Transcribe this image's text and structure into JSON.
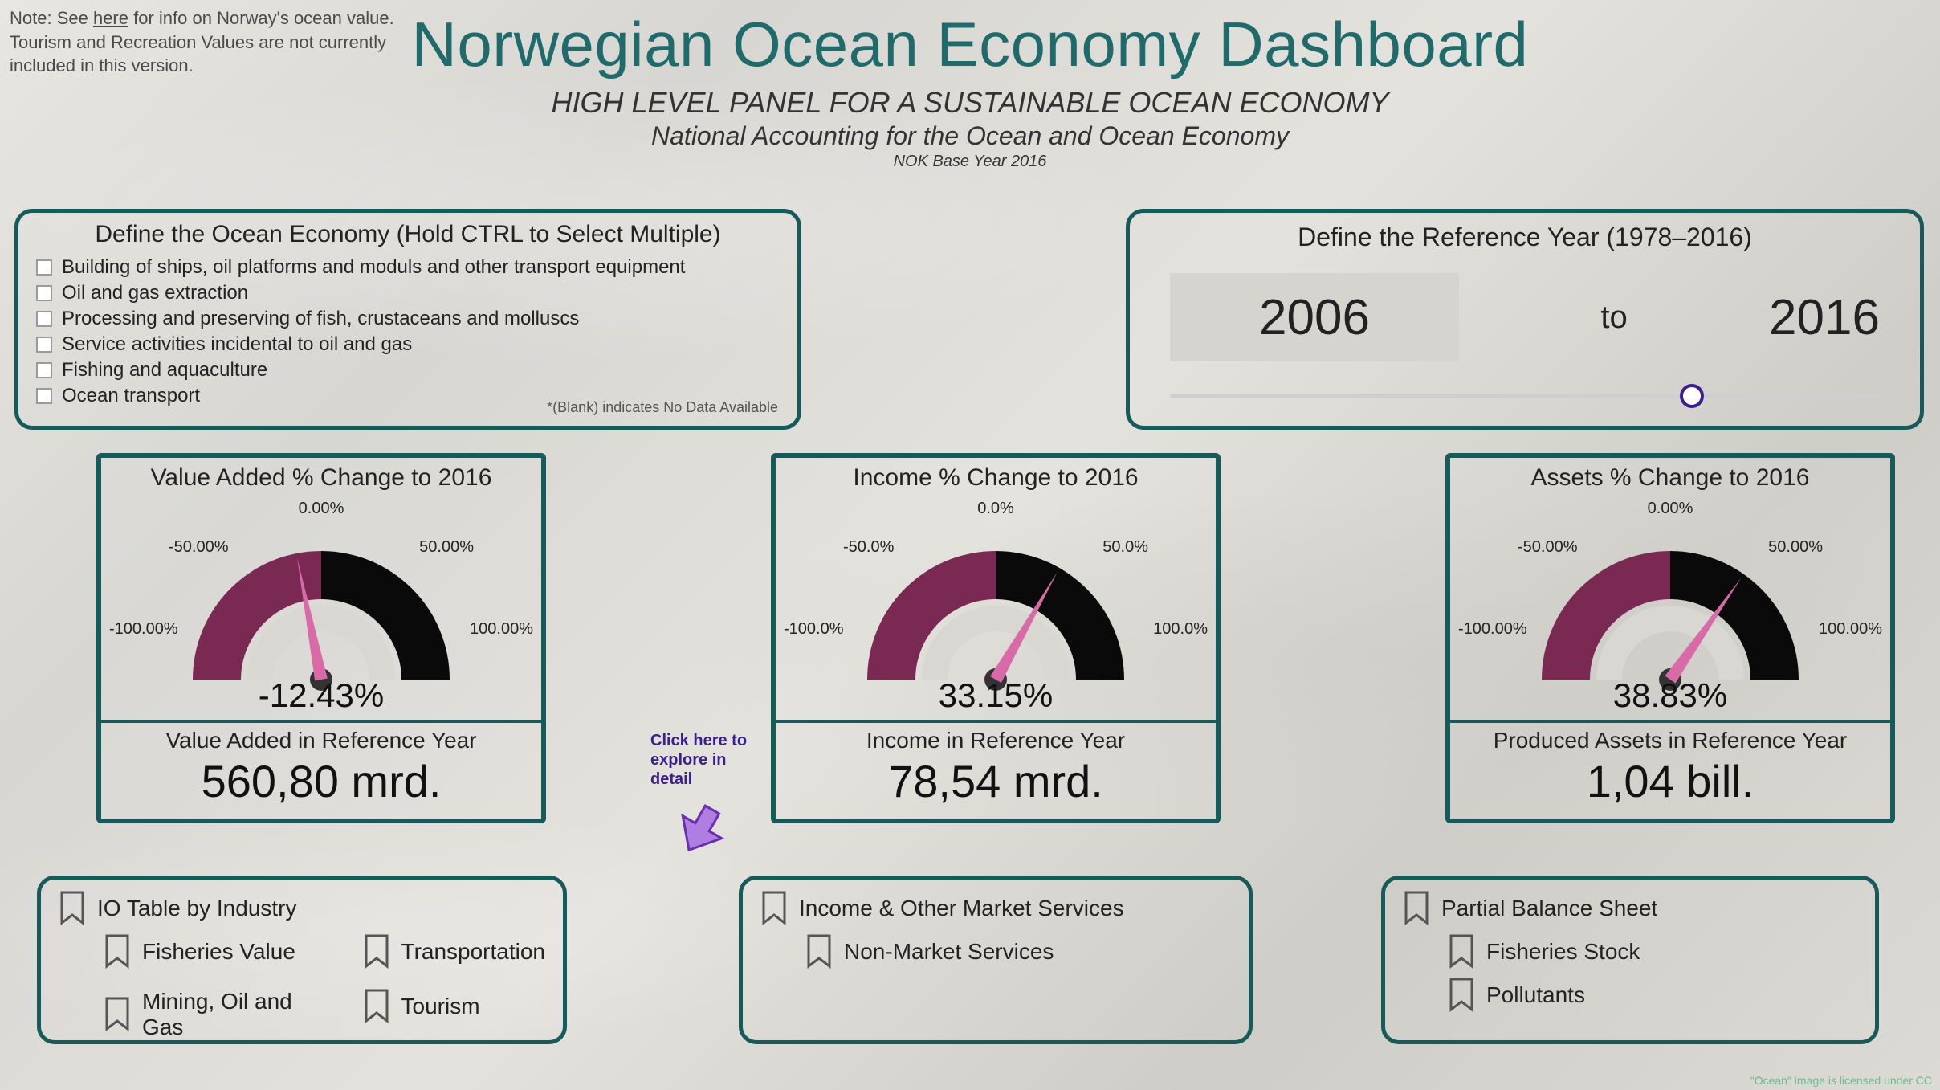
{
  "colors": {
    "accent_teal": "#165a5a",
    "title_teal": "#1f6b6b",
    "gauge_left": "#7a2a52",
    "gauge_right": "#0a0a0a",
    "gauge_inner": "#d9d7d2",
    "needle": "#d86aa8",
    "arrow_purple": "#9a4fd6",
    "slider_thumb_ring": "#3b1e8f",
    "text_dark": "#222222"
  },
  "note": {
    "prefix": "Note: See ",
    "link": "here",
    "suffix1": " for info on Norway's ocean value.",
    "line2": "Tourism and Recreation Values are not currently included in this version."
  },
  "header": {
    "title": "Norwegian Ocean Economy Dashboard",
    "subtitle1": "HIGH LEVEL PANEL FOR A SUSTAINABLE OCEAN ECONOMY",
    "subtitle2": "National Accounting for the Ocean and Ocean Economy",
    "base_year": "NOK Base Year 2016"
  },
  "define_economy": {
    "title": "Define the Ocean Economy (Hold CTRL to Select Multiple)",
    "options": [
      "Building of ships, oil platforms and moduls and other transport equipment",
      "Oil and gas extraction",
      "Processing and preserving of fish, crustaceans and molluscs",
      "Service activities incidental to oil and gas",
      "Fishing and aquaculture",
      "Ocean transport"
    ],
    "blank_note": "*(Blank) indicates No Data Available"
  },
  "define_year": {
    "title": "Define the Reference Year (1978–2016)",
    "from": "2006",
    "to_label": "to",
    "to": "2016",
    "slider": {
      "min": 1978,
      "max": 2016,
      "value": 2006,
      "thumb_pos_pct": 73
    }
  },
  "gauges": {
    "scale": {
      "ticks": [
        "-100.00%",
        "-50.00%",
        "0.00%",
        "50.00%",
        "100.00%"
      ],
      "ticks_alt": [
        "-100.0%",
        "-50.0%",
        "0.0%",
        "50.0%",
        "100.0%"
      ]
    },
    "value_added": {
      "title": "Value Added % Change to 2016",
      "value_pct": -12.43,
      "value_label": "-12.43%",
      "ref_label": "Value Added in Reference Year",
      "ref_value": "560,80 mrd."
    },
    "income": {
      "title": "Income % Change to 2016",
      "value_pct": 33.15,
      "value_label": "33.15%",
      "ref_label": "Income in Reference Year",
      "ref_value": "78,54 mrd."
    },
    "assets": {
      "title": "Assets % Change to 2016",
      "value_pct": 38.83,
      "value_label": "38.83%",
      "ref_label": "Produced Assets in Reference Year",
      "ref_value": "1,04 bill."
    }
  },
  "explore": {
    "text_l1": "Click here to",
    "text_l2": "explore in",
    "text_l3": "detail"
  },
  "bookmarks": {
    "group1": {
      "header": "IO Table by Industry",
      "items_col1": [
        "Fisheries Value",
        "Mining, Oil and Gas"
      ],
      "items_col2": [
        "Transportation",
        "Tourism"
      ]
    },
    "group2": {
      "header": "Income & Other Market Services",
      "items": [
        "Non-Market Services"
      ]
    },
    "group3": {
      "header": "Partial Balance Sheet",
      "items": [
        "Fisheries Stock",
        "Pollutants"
      ]
    }
  },
  "footer": {
    "credit": "\"Ocean\" image is licensed under CC"
  }
}
